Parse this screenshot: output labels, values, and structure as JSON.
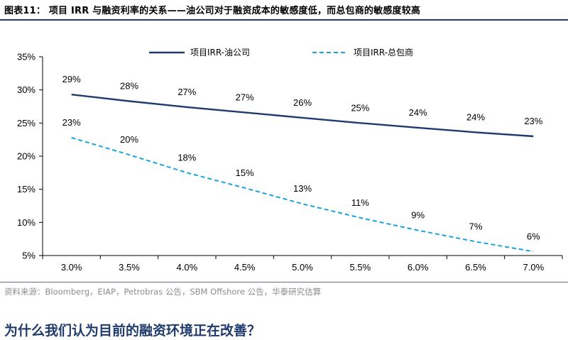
{
  "figure": {
    "title": "图表11： 项目 IRR 与融资利率的关系——油公司对于融资成本的敏感度低，而总包商的敏感度较高",
    "source": "资料来源：Bloomberg，EIAP，Petrobras 公告，SBM Offshore 公告，华泰研究估算",
    "question": "为什么我们认为目前的融资环境正在改善？"
  },
  "chart_data": {
    "type": "line",
    "categories": [
      "3.0%",
      "3.5%",
      "4.0%",
      "4.5%",
      "5.0%",
      "5.5%",
      "6.0%",
      "6.5%",
      "7.0%"
    ],
    "ylim": [
      5,
      35
    ],
    "yticks": [
      5,
      10,
      15,
      20,
      25,
      30,
      35
    ],
    "ytick_labels": [
      "5%",
      "10%",
      "15%",
      "20%",
      "25%",
      "30%",
      "35%"
    ],
    "legend_position": "top",
    "series": [
      {
        "name": "项目IRR-油公司",
        "values": [
          29.3,
          28.3,
          27.4,
          26.6,
          25.8,
          25.0,
          24.3,
          23.6,
          23.0
        ],
        "labels": [
          "29%",
          "28%",
          "27%",
          "27%",
          "26%",
          "25%",
          "24%",
          "24%",
          "23%"
        ],
        "color": "#1f3b6e",
        "style": "solid"
      },
      {
        "name": "项目IRR-总包商",
        "values": [
          22.8,
          20.2,
          17.5,
          15.2,
          12.8,
          10.7,
          8.8,
          7.1,
          5.6
        ],
        "labels": [
          "23%",
          "20%",
          "18%",
          "15%",
          "13%",
          "11%",
          "9%",
          "7%",
          "6%"
        ],
        "color": "#1aa3e0",
        "style": "dashed"
      }
    ]
  }
}
